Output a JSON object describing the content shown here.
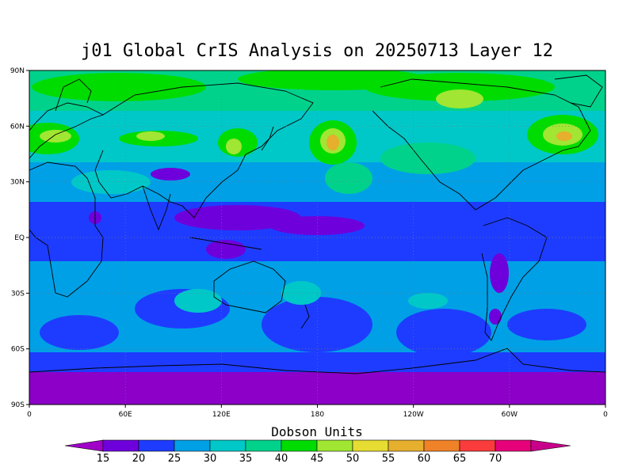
{
  "title": "j01 Global CrIS Analysis on 20250713 Layer 12",
  "units_label": "Dobson Units",
  "lat_ticks": [
    "90N",
    "60N",
    "30N",
    "EQ",
    "30S",
    "60S",
    "90S"
  ],
  "lon_ticks": [
    "0",
    "60E",
    "120E",
    "180",
    "120W",
    "60W",
    "0"
  ],
  "colorbar": {
    "labels": [
      "15",
      "20",
      "25",
      "30",
      "35",
      "40",
      "45",
      "50",
      "55",
      "60",
      "65",
      "70"
    ],
    "colors": [
      "#a000c8",
      "#6e00dc",
      "#1e3cff",
      "#00a0e6",
      "#00c8c8",
      "#00d28c",
      "#00dc00",
      "#a0e632",
      "#e6dc32",
      "#e6af2d",
      "#f08228",
      "#fa3c3c",
      "#e6007a",
      "#c8008a"
    ]
  },
  "palette": {
    "purple": "#8c00c8",
    "violet": "#6e00dc",
    "blue": "#1e3cff",
    "sky": "#00a0e6",
    "cyan": "#00c8c8",
    "teal": "#00d28c",
    "green": "#00dc00",
    "lime": "#a0e632",
    "yellow": "#e6dc32",
    "orange": "#e6af2d",
    "coast": "#000000"
  }
}
